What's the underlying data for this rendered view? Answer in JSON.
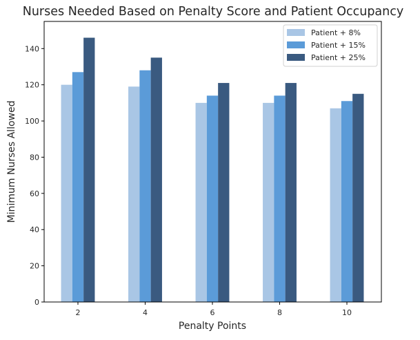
{
  "chart_data": {
    "type": "bar",
    "title": "Nurses Needed Based on Penalty Score and Patient Occupancy",
    "xlabel": "Penalty Points",
    "ylabel": "Minimum Nurses Allowed",
    "categories": [
      "2",
      "4",
      "6",
      "8",
      "10"
    ],
    "ylim": [
      0,
      155
    ],
    "yticks": [
      0,
      20,
      40,
      60,
      80,
      100,
      120,
      140
    ],
    "grid": false,
    "legend_position": "top-right",
    "series": [
      {
        "name": "Patient + 8%",
        "color": "#a9c6e5",
        "values": [
          120,
          119,
          110,
          110,
          107
        ]
      },
      {
        "name": "Patient + 15%",
        "color": "#5b9bd8",
        "values": [
          127,
          128,
          114,
          114,
          111
        ]
      },
      {
        "name": "Patient + 25%",
        "color": "#3a5a80",
        "values": [
          146,
          135,
          121,
          121,
          115
        ]
      }
    ]
  }
}
